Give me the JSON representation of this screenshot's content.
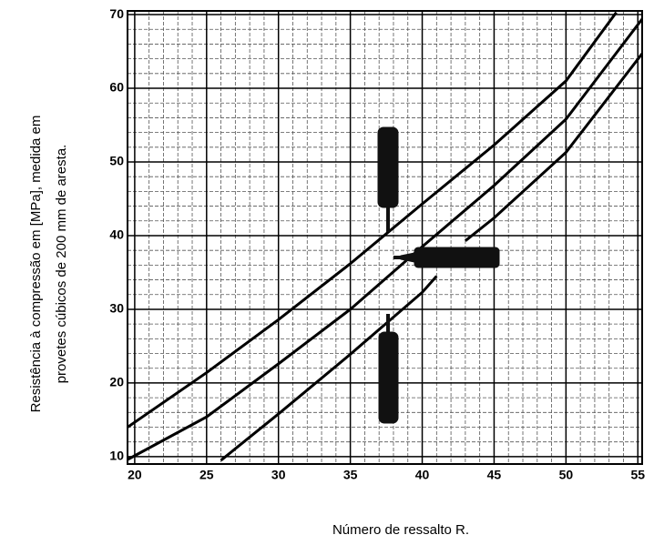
{
  "chart_data": {
    "type": "line",
    "x_label": "Número de ressalto R.",
    "y_label": [
      "Resistência à compressão em [MPa], medida em",
      "provetes cúbicos de 200 mm de aresta."
    ],
    "xlim": [
      19.5,
      55.3
    ],
    "ylim": [
      9,
      70.5
    ],
    "xticks": [
      20,
      25,
      30,
      35,
      40,
      45,
      50,
      55
    ],
    "yticks": [
      10,
      20,
      30,
      40,
      50,
      60,
      70
    ],
    "xminor_ticks": [
      21,
      22,
      23,
      24,
      26,
      27,
      28,
      29,
      31,
      32,
      33,
      34,
      36,
      37,
      38,
      39,
      41,
      42,
      43,
      44,
      46,
      47,
      48,
      49,
      51,
      52,
      53,
      54
    ],
    "yminor_ticks": [
      12,
      14,
      16,
      18,
      22,
      24,
      26,
      28,
      32,
      34,
      36,
      38,
      42,
      44,
      46,
      48,
      52,
      54,
      56,
      58,
      62,
      64,
      66,
      68
    ],
    "grid": true,
    "series": [
      {
        "color": "#000000",
        "x": [
          19.5,
          25,
          30,
          35,
          40,
          45,
          50,
          53.5
        ],
        "values": [
          14,
          21.4,
          28.6,
          36.2,
          44.3,
          52.3,
          61,
          70.3
        ]
      },
      {
        "color": "#000000",
        "x": [
          19.5,
          25,
          30,
          35,
          40,
          45,
          50,
          55.3
        ],
        "values": [
          9.6,
          15.4,
          22.6,
          30,
          38.5,
          46.8,
          55.8,
          69.4
        ]
      },
      {
        "color": "#000000",
        "x": [
          26,
          30,
          35,
          40,
          41,
          42,
          43,
          45,
          50,
          55.3
        ],
        "values": [
          9.5,
          15.8,
          23.9,
          32.3,
          34.5,
          null,
          39.3,
          42.4,
          51.3,
          64.7
        ]
      }
    ]
  }
}
